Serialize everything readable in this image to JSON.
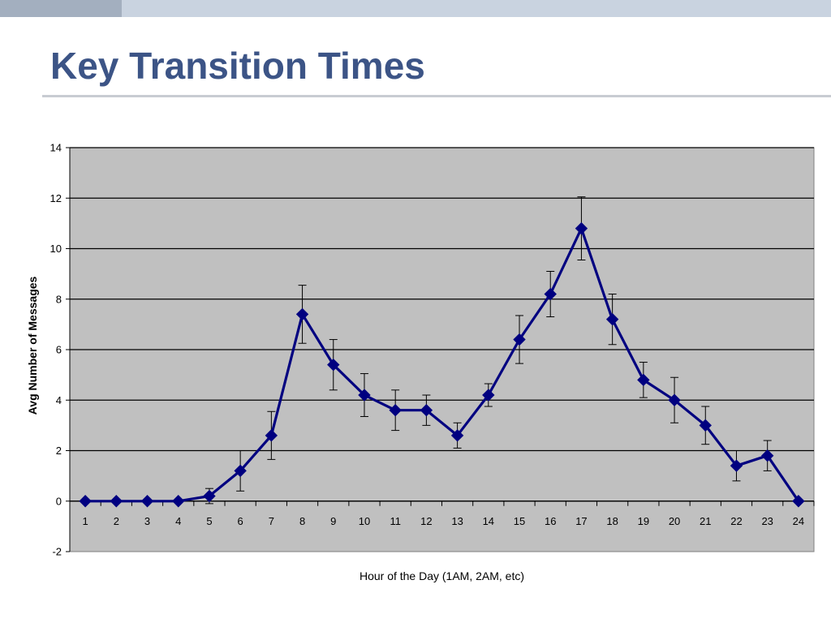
{
  "slide": {
    "title": "Key Transition Times"
  },
  "colors": {
    "title": "#3c5486",
    "top_bar": "#c9d3e0",
    "top_bar_accent": "#a3afbf",
    "plot_area": "#c0c0c0",
    "series_line": "#000080",
    "gridline": "#000000"
  },
  "chart_data": {
    "type": "line",
    "title": "",
    "xlabel": "Hour of the Day (1AM, 2AM, etc)",
    "ylabel": "Avg Number of Messages",
    "categories": [
      "1",
      "2",
      "3",
      "4",
      "5",
      "6",
      "7",
      "8",
      "9",
      "10",
      "11",
      "12",
      "13",
      "14",
      "15",
      "16",
      "17",
      "18",
      "19",
      "20",
      "21",
      "22",
      "23",
      "24"
    ],
    "series": [
      {
        "values": [
          0,
          0,
          0,
          0,
          0.2,
          1.2,
          2.6,
          7.4,
          5.4,
          4.2,
          3.6,
          3.6,
          2.6,
          4.2,
          6.4,
          8.2,
          10.8,
          7.2,
          4.8,
          4.0,
          3.0,
          1.4,
          1.8,
          0
        ],
        "error": [
          0,
          0,
          0,
          0,
          0.3,
          0.8,
          0.95,
          1.15,
          1.0,
          0.85,
          0.8,
          0.6,
          0.5,
          0.45,
          0.95,
          0.9,
          1.25,
          1.0,
          0.7,
          0.9,
          0.75,
          0.6,
          0.6,
          0
        ],
        "marker": "diamond"
      }
    ],
    "ylim": [
      -2,
      14
    ],
    "yticks": [
      -2,
      0,
      2,
      4,
      6,
      8,
      10,
      12,
      14
    ],
    "grid": true,
    "legend": "none"
  }
}
